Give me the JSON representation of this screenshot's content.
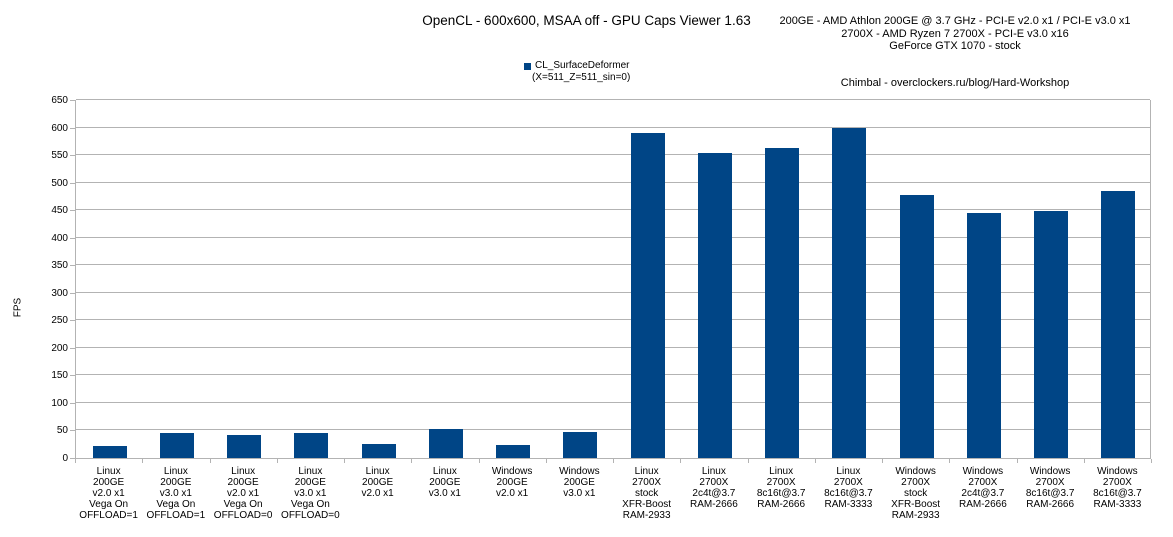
{
  "header": {
    "title": "OpenCL - 600x600, MSAA off - GPU Caps Viewer 1.63",
    "system_info_lines": [
      "200GE - AMD Athlon 200GE @ 3.7 GHz - PCI-E v2.0 x1 / PCI-E v3.0 x1",
      "2700X - AMD Ryzen 7 2700X - PCI-E v3.0 x16",
      "GeForce GTX 1070 - stock"
    ],
    "credit": "Chimbal - overclockers.ru/blog/Hard-Workshop"
  },
  "legend": {
    "series_label": "CL_SurfaceDeformer",
    "series_sublabel": "(X=511_Z=511_sin=0)",
    "marker_color": "#004586"
  },
  "colors": {
    "bar": "#004586",
    "grid": "#b3b3b3",
    "text": "#000000",
    "background": "#ffffff"
  },
  "chart_data": {
    "type": "bar",
    "title": "OpenCL - 600x600, MSAA off - GPU Caps Viewer 1.63",
    "series_name": "CL_SurfaceDeformer (X=511_Z=511_sin=0)",
    "xlabel": "",
    "ylabel": "FPS",
    "ylim": [
      0,
      650
    ],
    "ytick_step": 50,
    "grid": true,
    "legend_position": "top-center",
    "bar_color": "#004586",
    "categories": [
      [
        "Linux",
        "200GE",
        "v2.0 x1",
        "Vega On",
        "OFFLOAD=1"
      ],
      [
        "Linux",
        "200GE",
        "v3.0 x1",
        "Vega On",
        "OFFLOAD=1"
      ],
      [
        "Linux",
        "200GE",
        "v2.0 x1",
        "Vega On",
        "OFFLOAD=0"
      ],
      [
        "Linux",
        "200GE",
        "v3.0 x1",
        "Vega On",
        "OFFLOAD=0"
      ],
      [
        "Linux",
        "200GE",
        "v2.0 x1"
      ],
      [
        "Linux",
        "200GE",
        "v3.0 x1"
      ],
      [
        "Windows",
        "200GE",
        "v2.0 x1"
      ],
      [
        "Windows",
        "200GE",
        "v3.0 x1"
      ],
      [
        "Linux",
        "2700X",
        "stock",
        "XFR-Boost",
        "RAM-2933"
      ],
      [
        "Linux",
        "2700X",
        "2c4t@3.7",
        "RAM-2666"
      ],
      [
        "Linux",
        "2700X",
        "8c16t@3.7",
        "RAM-2666"
      ],
      [
        "Linux",
        "2700X",
        "8c16t@3.7",
        "RAM-3333"
      ],
      [
        "Windows",
        "2700X",
        "stock",
        "XFR-Boost",
        "RAM-2933"
      ],
      [
        "Windows",
        "2700X",
        "2c4t@3.7",
        "RAM-2666"
      ],
      [
        "Windows",
        "2700X",
        "8c16t@3.7",
        "RAM-2666"
      ],
      [
        "Windows",
        "2700X",
        "8c16t@3.7",
        "RAM-3333"
      ]
    ],
    "values": [
      22,
      45,
      42,
      45,
      26,
      52,
      24,
      48,
      590,
      553,
      562,
      600,
      478,
      445,
      449,
      485
    ]
  }
}
